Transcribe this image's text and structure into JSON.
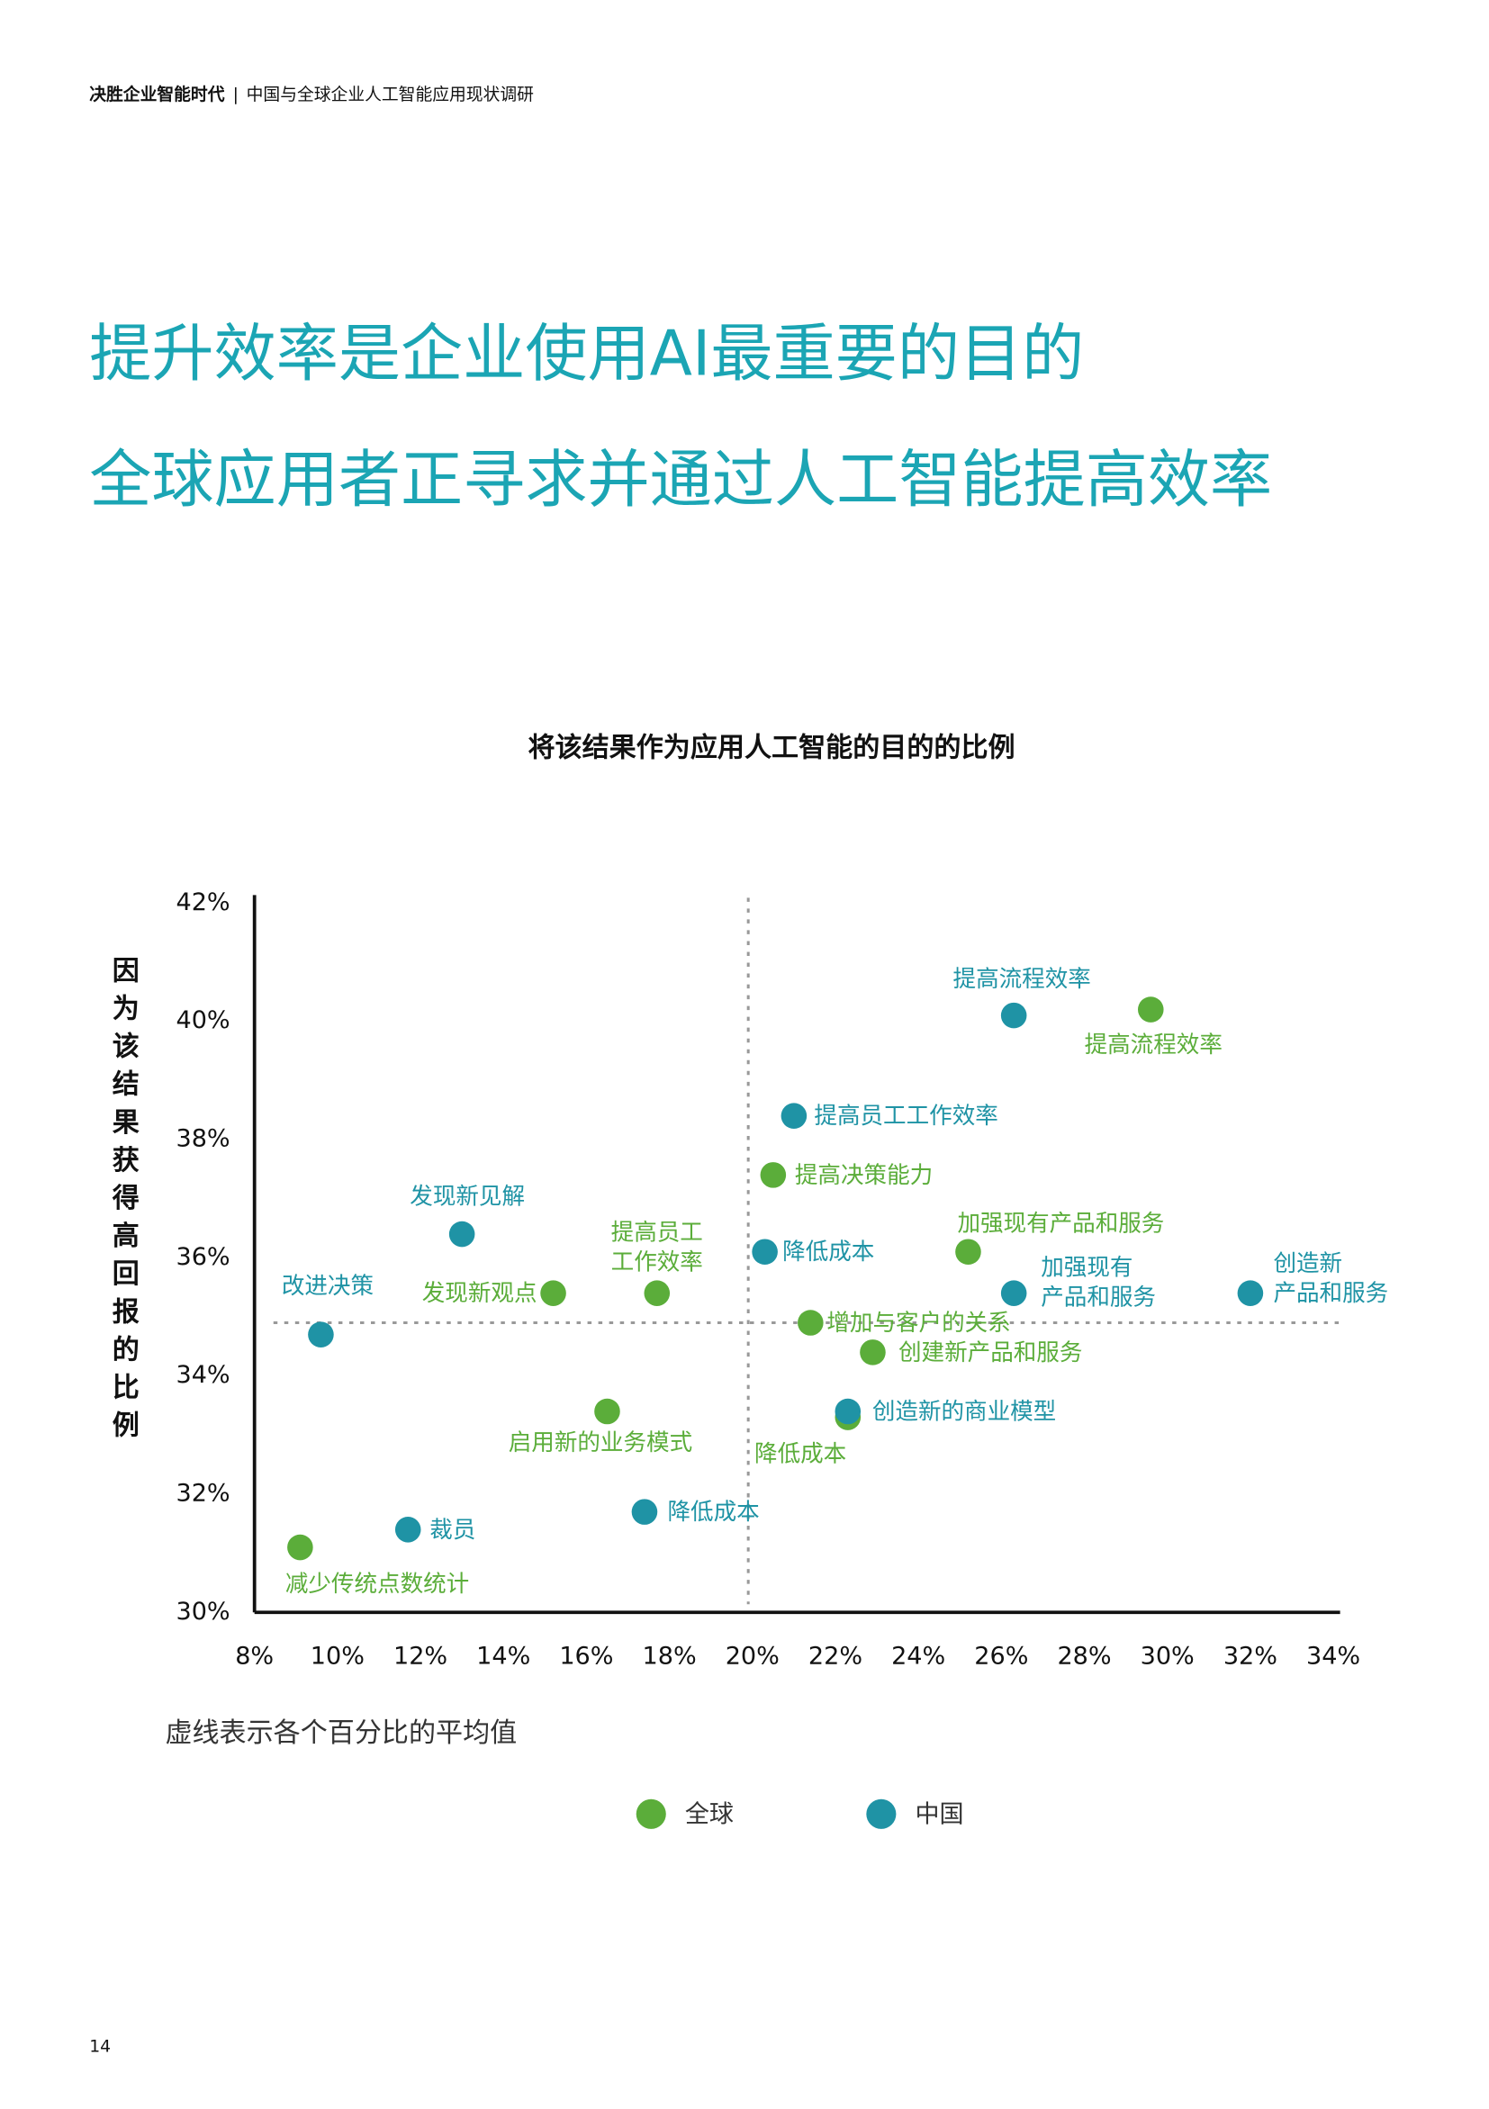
{
  "header": {
    "title": "决胜企业智能时代",
    "separator": "|",
    "subtitle": "中国与全球企业人工智能应用现状调研"
  },
  "headline": [
    "提升效率是企业使用AI最重要的目的",
    "全球应用者正寻求并通过人工智能提高效率"
  ],
  "chart_data": {
    "type": "scatter",
    "title": "将该结果作为应用人工智能的目的的比例",
    "y_label": "因为该结果获得高回报的比例",
    "note": "虚线表示各个百分比的平均值",
    "xlim": [
      8,
      34
    ],
    "ylim": [
      30,
      42
    ],
    "xticks": [
      {
        "value": 8,
        "label": "8%"
      },
      {
        "value": 10,
        "label": "10%"
      },
      {
        "value": 12,
        "label": "12%"
      },
      {
        "value": 14,
        "label": "14%"
      },
      {
        "value": 16,
        "label": "16%"
      },
      {
        "value": 18,
        "label": "18%"
      },
      {
        "value": 20,
        "label": "20%"
      },
      {
        "value": 22,
        "label": "22%"
      },
      {
        "value": 24,
        "label": "24%"
      },
      {
        "value": 26,
        "label": "26%"
      },
      {
        "value": 28,
        "label": "28%"
      },
      {
        "value": 30,
        "label": "30%"
      },
      {
        "value": 32,
        "label": "32%"
      },
      {
        "value": 34,
        "label": "34%"
      }
    ],
    "yticks": [
      {
        "value": 30,
        "label": "30%"
      },
      {
        "value": 32,
        "label": "32%"
      },
      {
        "value": 34,
        "label": "34%"
      },
      {
        "value": 36,
        "label": "36%"
      },
      {
        "value": 38,
        "label": "38%"
      },
      {
        "value": 40,
        "label": "40%"
      },
      {
        "value": 42,
        "label": "42%"
      }
    ],
    "mean_x": 19.9,
    "mean_y": 34.9,
    "series": [
      {
        "name": "全球",
        "color": "#5bad3a",
        "x": [
          29.6,
          20.5,
          25.2,
          17.7,
          15.2,
          21.4,
          22.9,
          16.5,
          22.3,
          9.1
        ],
        "values": [
          40.2,
          37.4,
          36.1,
          35.4,
          35.4,
          34.9,
          34.4,
          33.4,
          33.3,
          31.1
        ],
        "labels": [
          [
            "提高流程效率"
          ],
          [
            "提高决策能力"
          ],
          [
            "加强现有产品和服务"
          ],
          [
            "提高员工",
            "工作效率"
          ],
          [
            "发现新观点"
          ],
          [
            "增加与客户的关系"
          ],
          [
            "创建新产品和服务"
          ],
          [
            "启用新的业务模式"
          ],
          [
            "降低成本"
          ],
          [
            "减少传统点数统计"
          ]
        ]
      },
      {
        "name": "中国",
        "color": "#1f93a5",
        "x": [
          26.3,
          21.0,
          13.0,
          20.3,
          26.3,
          32.0,
          9.6,
          22.3,
          17.4,
          11.7
        ],
        "values": [
          40.1,
          38.4,
          36.4,
          36.1,
          35.4,
          35.4,
          34.7,
          33.4,
          31.7,
          31.4
        ],
        "labels": [
          [
            "提高流程效率"
          ],
          [
            "提高员工工作效率"
          ],
          [
            "发现新见解"
          ],
          [
            "降低成本"
          ],
          [
            "加强现有",
            "产品和服务"
          ],
          [
            "创造新",
            "产品和服务"
          ],
          [
            "改进决策"
          ],
          [
            "创造新的商业模型"
          ],
          [
            "降低成本"
          ],
          [
            "裁员"
          ]
        ]
      }
    ]
  },
  "page_number": "14"
}
